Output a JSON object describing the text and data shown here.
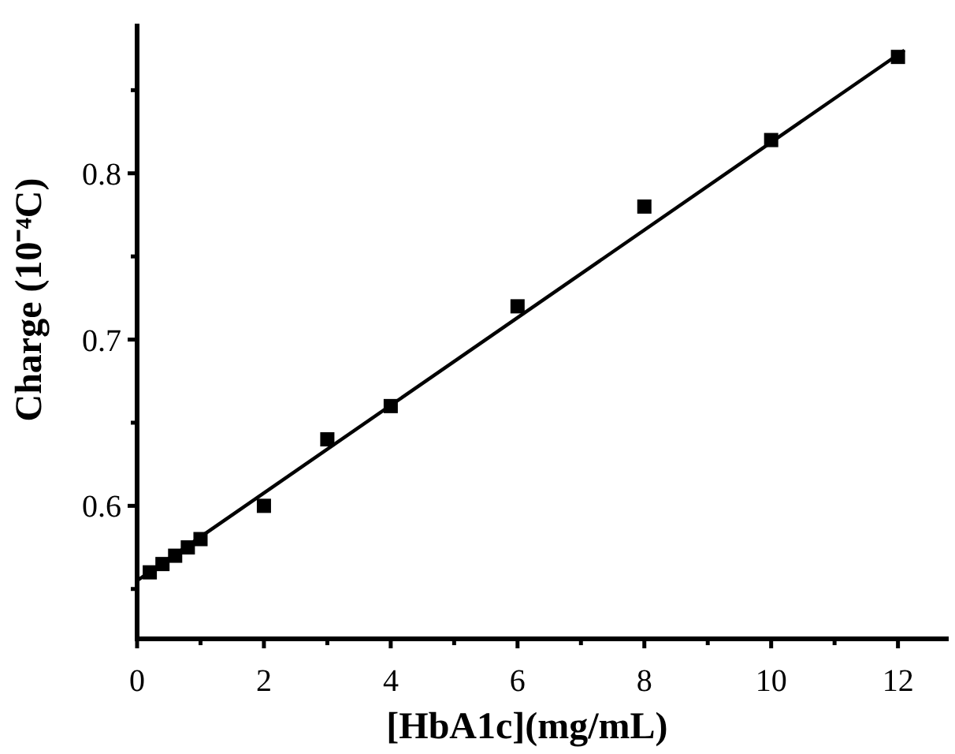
{
  "chart_data": {
    "type": "scatter",
    "xlabel": "[HbA1c](mg/mL)",
    "ylabel": "Charge (10⁻⁴C)",
    "xlim": [
      0,
      12.8
    ],
    "ylim": [
      0.52,
      0.89
    ],
    "xticks": [
      0,
      {
        "value": 1,
        "label": null
      },
      2,
      {
        "value": 3,
        "label": null
      },
      4,
      {
        "value": 5,
        "label": null
      },
      6,
      {
        "value": 7,
        "label": null
      },
      8,
      {
        "value": 9,
        "label": null
      },
      10,
      {
        "value": 11,
        "label": null
      },
      12
    ],
    "yticks": [
      {
        "value": 0.55,
        "label": null
      },
      0.6,
      {
        "value": 0.65,
        "label": null
      },
      0.7,
      {
        "value": 0.75,
        "label": null
      },
      0.8,
      {
        "value": 0.85,
        "label": null
      }
    ],
    "grid": false,
    "series": [
      {
        "marker": "square",
        "color": "#000000",
        "x": [
          0.2,
          0.4,
          0.6,
          0.8,
          1,
          2,
          3,
          4,
          6,
          8,
          10,
          12
        ],
        "values": [
          0.56,
          0.565,
          0.57,
          0.575,
          0.58,
          0.6,
          0.64,
          0.66,
          0.72,
          0.78,
          0.82,
          0.87
        ]
      },
      {
        "type": "line",
        "color": "#000000",
        "x": [
          0,
          12.1
        ],
        "values": [
          0.555,
          0.874
        ]
      }
    ]
  }
}
